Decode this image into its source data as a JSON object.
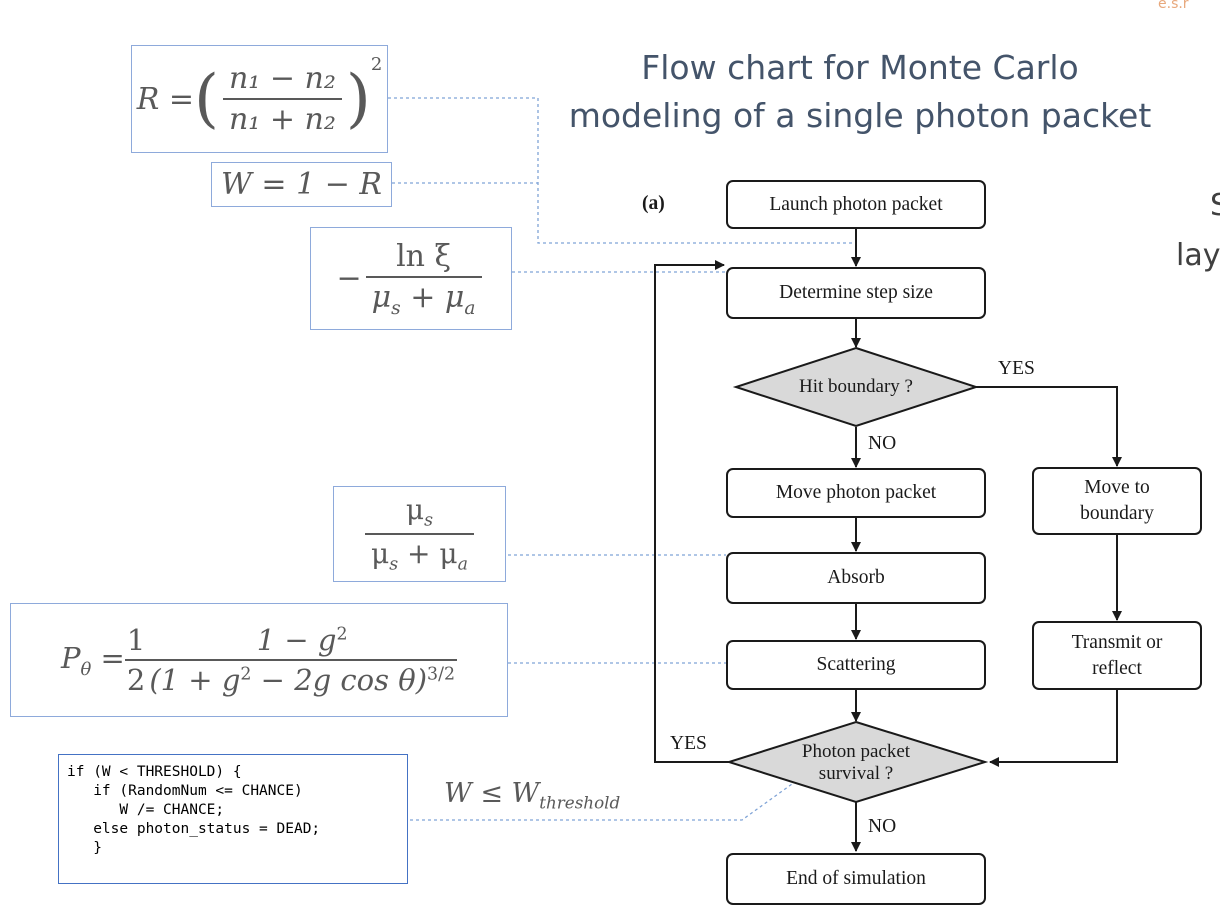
{
  "title": {
    "line1": "Flow chart for Monte Carlo",
    "line2": "modeling of a single photon packet"
  },
  "edge_fragments": {
    "top_right": "e.s.r",
    "right_1": "S",
    "right_2": "lay"
  },
  "formulas": {
    "fresnel": {
      "lhs": "R =",
      "num": "n₁ − n₂",
      "den": "n₁ + n₂",
      "power": "2"
    },
    "weight": "W = 1 − R",
    "step": {
      "sign": "−",
      "num": "ln ξ",
      "den_a": "μ",
      "den_a_sub": "s",
      "den_op": " + ",
      "den_b": "μ",
      "den_b_sub": "a"
    },
    "albedo": {
      "num": "μ",
      "num_sub": "s",
      "den_a": "μ",
      "den_a_sub": "s",
      "den_op": " + ",
      "den_b": "μ",
      "den_b_sub": "a"
    },
    "phase": {
      "lhs": "P",
      "lhs_sub": "θ",
      "eq": " = ",
      "half_num": "1",
      "half_den": "2",
      "num": "1 − g",
      "num_pow": "2",
      "den": "(1 + g",
      "den_pow": "2",
      "den_rest": " − 2g cos θ)",
      "den_exp": "3/2"
    },
    "threshold": {
      "w": "W ≤ W",
      "sub": "threshold"
    }
  },
  "code": {
    "lines": [
      "if (W < THRESHOLD) {",
      "   if (RandomNum <= CHANCE)",
      "      W /= CHANCE;",
      "   else photon_status = DEAD;",
      "   }"
    ]
  },
  "flowchart": {
    "panel_label": "(a)",
    "launch": "Launch photon packet",
    "step": "Determine step size",
    "hit": "Hit boundary ?",
    "move": "Move photon packet",
    "absorb": "Absorb",
    "scatter": "Scattering",
    "survival_1": "Photon packet",
    "survival_2": "survival ?",
    "end": "End of simulation",
    "move_boundary_1": "Move to",
    "move_boundary_2": "boundary",
    "transmit_1": "Transmit or",
    "transmit_2": "reflect",
    "yes_hit": "YES",
    "no_hit": "NO",
    "yes_survival": "YES",
    "no_survival": "NO"
  },
  "colors": {
    "title": "#44546a",
    "formula_border": "#8eaadb",
    "code_border": "#4472c4",
    "connector": "#7fa3d6",
    "diamond_fill": "#d9d9d9"
  }
}
